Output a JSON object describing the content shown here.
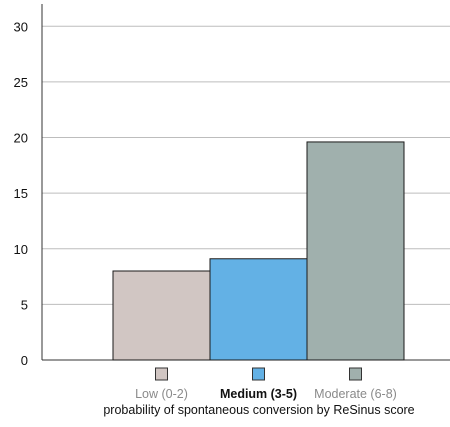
{
  "chart_data": {
    "type": "bar",
    "categories": [
      "Low (0-2)",
      "Medium (3-5)",
      "Moderate (6-8)"
    ],
    "values": [
      8.0,
      9.1,
      19.6
    ],
    "colors": [
      "#d1c6c3",
      "#63b1e5",
      "#a0b0ad"
    ],
    "xlabel": "probability of spontaneous conversion by ReSinus score",
    "ylabel": "",
    "ylim": [
      0,
      32
    ],
    "yticks": [
      0,
      5,
      10,
      15,
      20,
      25,
      30
    ],
    "grid": true,
    "legend_placement": "bottom",
    "legend_highlight": "Medium (3-5)"
  }
}
